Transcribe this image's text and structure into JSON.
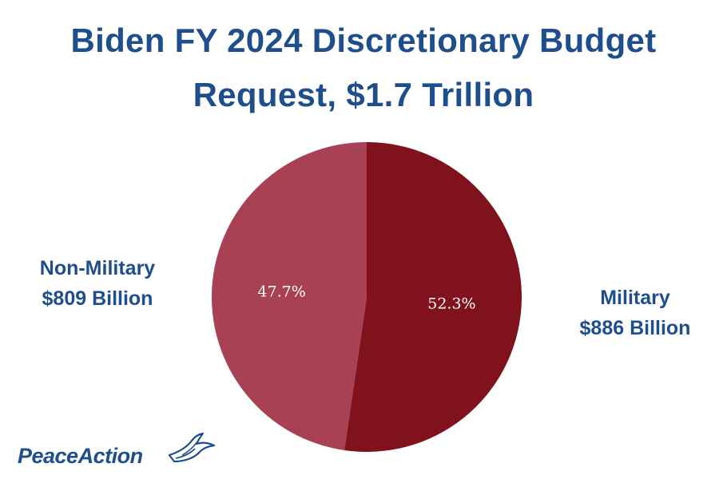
{
  "colors": {
    "title": "#1f4e8c",
    "military": "#80121e",
    "non_military": "#a84153",
    "logo_peace": "#1f4e8c",
    "logo_action": "#1f4e8c"
  },
  "title_lines": [
    "Biden FY 2024 Discretionary Budget",
    "Request, $1.7 Trillion"
  ],
  "labels": {
    "non_military": [
      "Non-Military",
      "$809 Billion"
    ],
    "military": [
      "Military",
      "$886 Billion"
    ]
  },
  "logo": {
    "text_peace": "Peace",
    "text_action": "Action",
    "icon": "dove-icon"
  },
  "chart_data": {
    "type": "pie",
    "categories": [
      "Military",
      "Non-Military"
    ],
    "values": [
      52.3,
      47.7
    ],
    "data_labels": [
      "52.3%",
      "47.7%"
    ],
    "unit": "%",
    "start": "12 o'clock, clockwise",
    "legend": "labels beside slices"
  }
}
